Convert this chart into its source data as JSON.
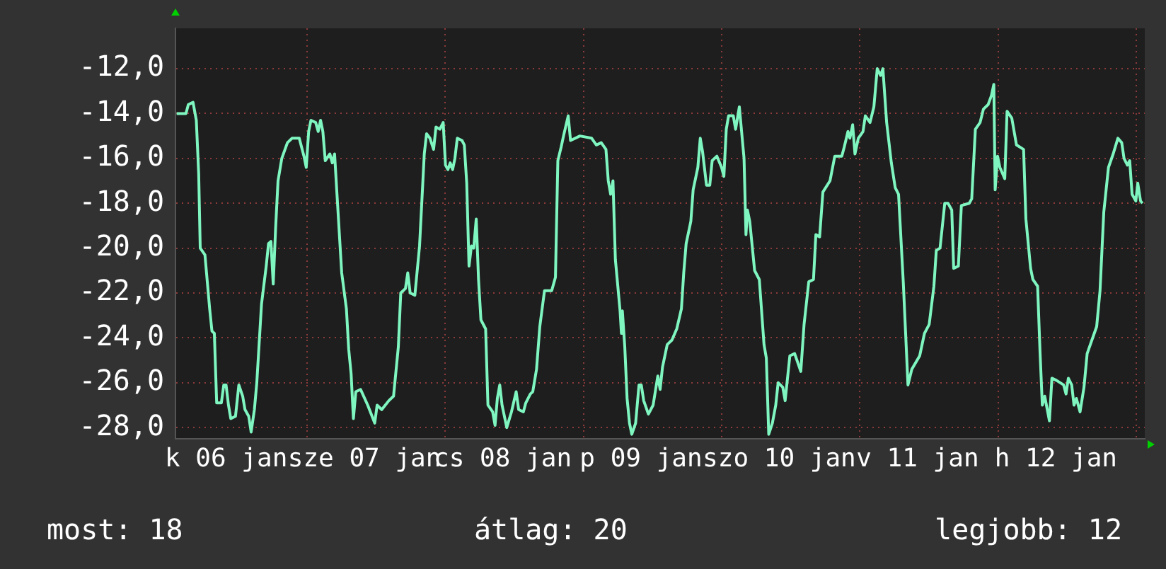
{
  "chart_data": {
    "type": "line",
    "annotations": [
      "most: 18",
      "átlag: 20",
      "legjobb: 12"
    ],
    "xlim": [
      "--01-06T01:12",
      "--01-13T01:26"
    ],
    "xticks": [
      {
        "value": "--01-06T10:00",
        "label": "k 06 jan"
      },
      {
        "value": "--01-07T10:00",
        "label": "sze 07 jan"
      },
      {
        "value": "--01-08T10:00",
        "label": "cs 08 jan"
      },
      {
        "value": "--01-09T10:00",
        "label": "p 09 jan"
      },
      {
        "value": "--01-10T10:00",
        "label": "szo 10 jan"
      },
      {
        "value": "--01-11T10:00",
        "label": "v 11 jan"
      },
      {
        "value": "--01-12T10:00",
        "label": "h 12 jan"
      },
      {
        "value": "--01-07T00:00",
        "label": null
      },
      {
        "value": "--01-08T00:00",
        "label": null
      },
      {
        "value": "--01-09T00:00",
        "label": null
      },
      {
        "value": "--01-10T00:00",
        "label": null
      },
      {
        "value": "--01-11T00:00",
        "label": null
      },
      {
        "value": "--01-12T00:00",
        "label": null
      },
      {
        "value": "--01-13T00:00",
        "label": null
      }
    ],
    "ylim": [
      -28.5,
      -10.2
    ],
    "yticks": [
      {
        "value": -28,
        "label": "-28,0"
      },
      {
        "value": -26,
        "label": "-26,0"
      },
      {
        "value": -24,
        "label": "-24,0"
      },
      {
        "value": -22,
        "label": "-22,0"
      },
      {
        "value": -20,
        "label": "-20,0"
      },
      {
        "value": -18,
        "label": "-18,0"
      },
      {
        "value": -16,
        "label": "-16,0"
      },
      {
        "value": -14,
        "label": "-14,0"
      },
      {
        "value": -12,
        "label": "-12,0"
      }
    ],
    "grid": true,
    "legend": false,
    "x": [
      "--01-06T01:24",
      "--01-06T03:01",
      "--01-06T03:26",
      "--01-06T04:15",
      "--01-06T04:49",
      "--01-06T05:14",
      "--01-06T05:30",
      "--01-06T06:19",
      "--01-06T07:08",
      "--01-06T07:32",
      "--01-06T07:57",
      "--01-06T08:21",
      "--01-06T09:10",
      "--01-06T09:35",
      "--01-06T09:59",
      "--01-06T10:24",
      "--01-06T10:48",
      "--01-06T11:37",
      "--01-06T12:12",
      "--01-06T12:52",
      "--01-06T13:16",
      "--01-06T13:55",
      "--01-06T14:20",
      "--01-06T14:54",
      "--01-06T15:19",
      "--01-06T16:08",
      "--01-06T16:57",
      "--01-06T17:21",
      "--01-06T17:46",
      "--01-06T18:10",
      "--01-06T18:35",
      "--01-06T19:00",
      "--01-06T19:39",
      "--01-06T20:38",
      "--01-06T21:27",
      "--01-06T22:41",
      "--01-06T23:30",
      "--01-06T23:54",
      "--01-07T00:19",
      "--01-07T00:43",
      "--01-07T01:32",
      "--01-07T01:58",
      "--01-07T02:23",
      "--01-07T02:47",
      "--01-07T03:12",
      "--01-07T04:00",
      "--01-07T04:25",
      "--01-07T04:49",
      "--01-07T05:14",
      "--01-07T06:03",
      "--01-07T06:52",
      "--01-07T07:16",
      "--01-07T07:41",
      "--01-07T08:05",
      "--01-07T08:30",
      "--01-07T09:20",
      "--01-07T10:34",
      "--01-07T11:47",
      "--01-07T12:12",
      "--01-07T13:00",
      "--01-07T14:14",
      "--01-07T15:03",
      "--01-07T15:53",
      "--01-07T16:18",
      "--01-07T17:07",
      "--01-07T17:31",
      "--01-07T17:56",
      "--01-07T18:45",
      "--01-07T19:34",
      "--01-07T20:23",
      "--01-07T20:47",
      "--01-07T21:22",
      "--01-07T22:00",
      "--01-07T22:25",
      "--01-07T23:05",
      "--01-07T23:40",
      "--01-08T00:04",
      "--01-08T00:29",
      "--01-08T00:53",
      "--01-08T01:18",
      "--01-08T01:42",
      "--01-08T02:07",
      "--01-08T02:56",
      "--01-08T03:20",
      "--01-08T03:45",
      "--01-08T04:09",
      "--01-08T04:34",
      "--01-08T04:58",
      "--01-08T05:24",
      "--01-08T05:48",
      "--01-08T06:13",
      "--01-08T07:02",
      "--01-08T07:26",
      "--01-08T08:15",
      "--01-08T08:40",
      "--01-08T09:04",
      "--01-08T09:29",
      "--01-08T09:53",
      "--01-08T10:42",
      "--01-08T11:31",
      "--01-08T12:20",
      "--01-08T12:46",
      "--01-08T13:35",
      "--01-08T14:00",
      "--01-08T14:48",
      "--01-08T15:13",
      "--01-08T15:52",
      "--01-08T16:26",
      "--01-08T17:15",
      "--01-08T18:30",
      "--01-08T19:09",
      "--01-08T19:34",
      "--01-08T20:08",
      "--01-08T20:33",
      "--01-08T21:22",
      "--01-08T21:46",
      "--01-08T23:24",
      "--01-09T01:26",
      "--01-09T02:15",
      "--01-09T03:06",
      "--01-09T03:55",
      "--01-09T04:19",
      "--01-09T04:44",
      "--01-09T05:08",
      "--01-09T05:33",
      "--01-09T06:22",
      "--01-09T06:36",
      "--01-09T06:46",
      "--01-09T07:11",
      "--01-09T07:35",
      "--01-09T08:00",
      "--01-09T08:24",
      "--01-09T09:04",
      "--01-09T09:39",
      "--01-09T10:03",
      "--01-09T10:28",
      "--01-09T11:17",
      "--01-09T12:06",
      "--01-09T12:55",
      "--01-09T13:19",
      "--01-09T13:44",
      "--01-09T14:33",
      "--01-09T15:22",
      "--01-09T16:12",
      "--01-09T17:01",
      "--01-09T17:25",
      "--01-09T17:50",
      "--01-09T18:39",
      "--01-09T19:03",
      "--01-09T19:52",
      "--01-09T20:17",
      "--01-09T20:41",
      "--01-09T21:22",
      "--01-09T21:56",
      "--01-09T22:21",
      "--01-09T23:10",
      "--01-09T23:59",
      "--01-10T00:23",
      "--01-10T00:48",
      "--01-10T01:12",
      "--01-10T02:01",
      "--01-10T02:25",
      "--01-10T03:04",
      "--01-10T03:53",
      "--01-10T04:13",
      "--01-10T04:28",
      "--01-10T04:52",
      "--01-10T05:43",
      "--01-10T06:32",
      "--01-10T07:21",
      "--01-10T07:45",
      "--01-10T08:10",
      "--01-10T08:48",
      "--01-10T09:23",
      "--01-10T09:48",
      "--01-10T10:36",
      "--01-10T11:01",
      "--01-10T11:50",
      "--01-10T12:40",
      "--01-10T13:44",
      "--01-10T14:18",
      "--01-10T15:07",
      "--01-10T15:56",
      "--01-10T16:21",
      "--01-10T17:00",
      "--01-10T17:34",
      "--01-10T18:48",
      "--01-10T19:38",
      "--01-10T20:51",
      "--01-10T21:16",
      "--01-10T21:55",
      "--01-10T22:15",
      "--01-10T22:44",
      "--01-10T23:08",
      "--01-10T23:43",
      "--01-11T00:32",
      "--01-11T00:56",
      "--01-11T01:45",
      "--01-11T02:25",
      "--01-11T03:00",
      "--01-11T03:35",
      "--01-11T03:59",
      "--01-11T04:38",
      "--01-11T05:27",
      "--01-11T06:07",
      "--01-11T06:42",
      "--01-11T07:31",
      "--01-11T08:20",
      "--01-11T09:00",
      "--01-11T10:22",
      "--01-11T11:12",
      "--01-11T12:01",
      "--01-11T12:50",
      "--01-11T13:15",
      "--01-11T13:54",
      "--01-11T14:43",
      "--01-11T15:17",
      "--01-11T15:56",
      "--01-11T16:16",
      "--01-11T17:05",
      "--01-11T17:36",
      "--01-11T18:58",
      "--01-11T19:24",
      "--01-11T20:02",
      "--01-11T20:51",
      "--01-11T21:26",
      "--01-11T22:15",
      "--01-11T22:49",
      "--01-11T23:14",
      "--01-11T23:28",
      "--01-11T23:53",
      "--01-12T00:17",
      "--01-12T01:08",
      "--01-12T01:32",
      "--01-12T02:21",
      "--01-12T03:10",
      "--01-12T04:24",
      "--01-12T04:48",
      "--01-12T05:37",
      "--01-12T06:01",
      "--01-12T06:50",
      "--01-12T07:15",
      "--01-12T07:39",
      "--01-12T08:04",
      "--01-12T08:53",
      "--01-12T09:19",
      "--01-12T10:08",
      "--01-12T11:21",
      "--01-12T11:46",
      "--01-12T12:10",
      "--01-12T12:45",
      "--01-12T13:09",
      "--01-12T13:34",
      "--01-12T14:12",
      "--01-12T14:53",
      "--01-12T15:26",
      "--01-12T16:15",
      "--01-12T17:05",
      "--01-12T17:40",
      "--01-12T18:19",
      "--01-12T19:08",
      "--01-12T19:57",
      "--01-12T20:46",
      "--01-12T21:26",
      "--01-12T21:50",
      "--01-12T22:25",
      "--01-12T22:49",
      "--01-12T23:14",
      "--01-12T23:53",
      "--01-13T00:13",
      "--01-13T00:42",
      "--01-13T01:02"
    ],
    "series": [
      {
        "color": "#7ff5c0",
        "values": [
          -14.0,
          -14.0,
          -13.6,
          -13.5,
          -14.3,
          -16.7,
          -20.0,
          -20.3,
          -22.7,
          -23.7,
          -23.8,
          -26.9,
          -26.9,
          -26.1,
          -26.1,
          -27.0,
          -27.6,
          -27.5,
          -26.1,
          -26.6,
          -27.2,
          -27.5,
          -28.2,
          -27.2,
          -26.0,
          -22.5,
          -20.8,
          -19.8,
          -19.7,
          -21.6,
          -19.1,
          -17.0,
          -16.0,
          -15.3,
          -15.1,
          -15.1,
          -15.9,
          -16.4,
          -14.8,
          -14.3,
          -14.4,
          -14.8,
          -14.3,
          -14.8,
          -16.1,
          -15.8,
          -16.2,
          -15.8,
          -17.6,
          -21.1,
          -22.7,
          -24.5,
          -25.6,
          -27.6,
          -26.4,
          -26.3,
          -27.0,
          -27.8,
          -27.0,
          -27.2,
          -26.8,
          -26.6,
          -24.4,
          -22.0,
          -21.8,
          -21.1,
          -22.0,
          -22.1,
          -19.9,
          -15.8,
          -14.9,
          -15.1,
          -15.6,
          -14.6,
          -14.7,
          -14.4,
          -16.3,
          -16.5,
          -16.2,
          -16.5,
          -16.0,
          -15.1,
          -15.2,
          -15.4,
          -17.1,
          -20.8,
          -19.9,
          -20.0,
          -18.7,
          -21.4,
          -23.2,
          -23.6,
          -27.0,
          -27.3,
          -27.9,
          -26.7,
          -26.1,
          -27.0,
          -28.0,
          -27.3,
          -26.4,
          -27.2,
          -27.3,
          -26.9,
          -26.5,
          -26.4,
          -25.4,
          -23.5,
          -21.9,
          -21.9,
          -21.3,
          -16.1,
          -15.5,
          -15.0,
          -14.1,
          -15.2,
          -15.0,
          -15.1,
          -15.4,
          -15.3,
          -15.6,
          -17.0,
          -17.6,
          -17.0,
          -20.5,
          -22.8,
          -23.8,
          -22.8,
          -24.4,
          -26.7,
          -27.8,
          -28.3,
          -27.8,
          -26.1,
          -26.1,
          -26.8,
          -27.4,
          -27.0,
          -25.7,
          -26.3,
          -25.3,
          -24.3,
          -24.1,
          -23.6,
          -22.7,
          -21.1,
          -19.8,
          -18.8,
          -17.4,
          -16.4,
          -15.1,
          -15.7,
          -17.2,
          -17.2,
          -16.1,
          -15.9,
          -16.4,
          -16.8,
          -14.7,
          -14.1,
          -14.1,
          -14.7,
          -13.7,
          -16.0,
          -19.4,
          -18.3,
          -18.8,
          -21.0,
          -21.4,
          -24.3,
          -24.9,
          -28.3,
          -27.8,
          -27.0,
          -26.0,
          -26.2,
          -26.8,
          -24.8,
          -24.7,
          -25.5,
          -23.4,
          -21.5,
          -21.4,
          -19.4,
          -19.5,
          -17.5,
          -17.0,
          -15.9,
          -15.9,
          -15.5,
          -14.8,
          -15.1,
          -14.5,
          -15.8,
          -15.1,
          -14.8,
          -14.1,
          -14.4,
          -13.7,
          -12.0,
          -12.3,
          -12.0,
          -14.4,
          -16.2,
          -17.3,
          -17.6,
          -21.5,
          -26.1,
          -25.4,
          -24.8,
          -23.8,
          -23.4,
          -21.7,
          -20.1,
          -20.0,
          -18.0,
          -18.0,
          -18.3,
          -20.9,
          -20.8,
          -18.1,
          -18.0,
          -17.8,
          -14.7,
          -14.4,
          -13.8,
          -13.6,
          -13.2,
          -12.7,
          -17.4,
          -15.9,
          -16.4,
          -16.9,
          -13.9,
          -14.2,
          -15.4,
          -15.6,
          -18.7,
          -20.9,
          -21.4,
          -21.7,
          -24.6,
          -27.0,
          -26.6,
          -27.7,
          -25.8,
          -25.9,
          -26.1,
          -26.5,
          -25.8,
          -26.1,
          -27.0,
          -26.7,
          -27.3,
          -26.2,
          -24.7,
          -24.1,
          -23.5,
          -21.9,
          -18.4,
          -16.4,
          -15.8,
          -15.1,
          -15.3,
          -16.0,
          -16.3,
          -16.1,
          -17.6,
          -17.9,
          -17.1,
          -17.9,
          -18.0
        ]
      }
    ]
  }
}
